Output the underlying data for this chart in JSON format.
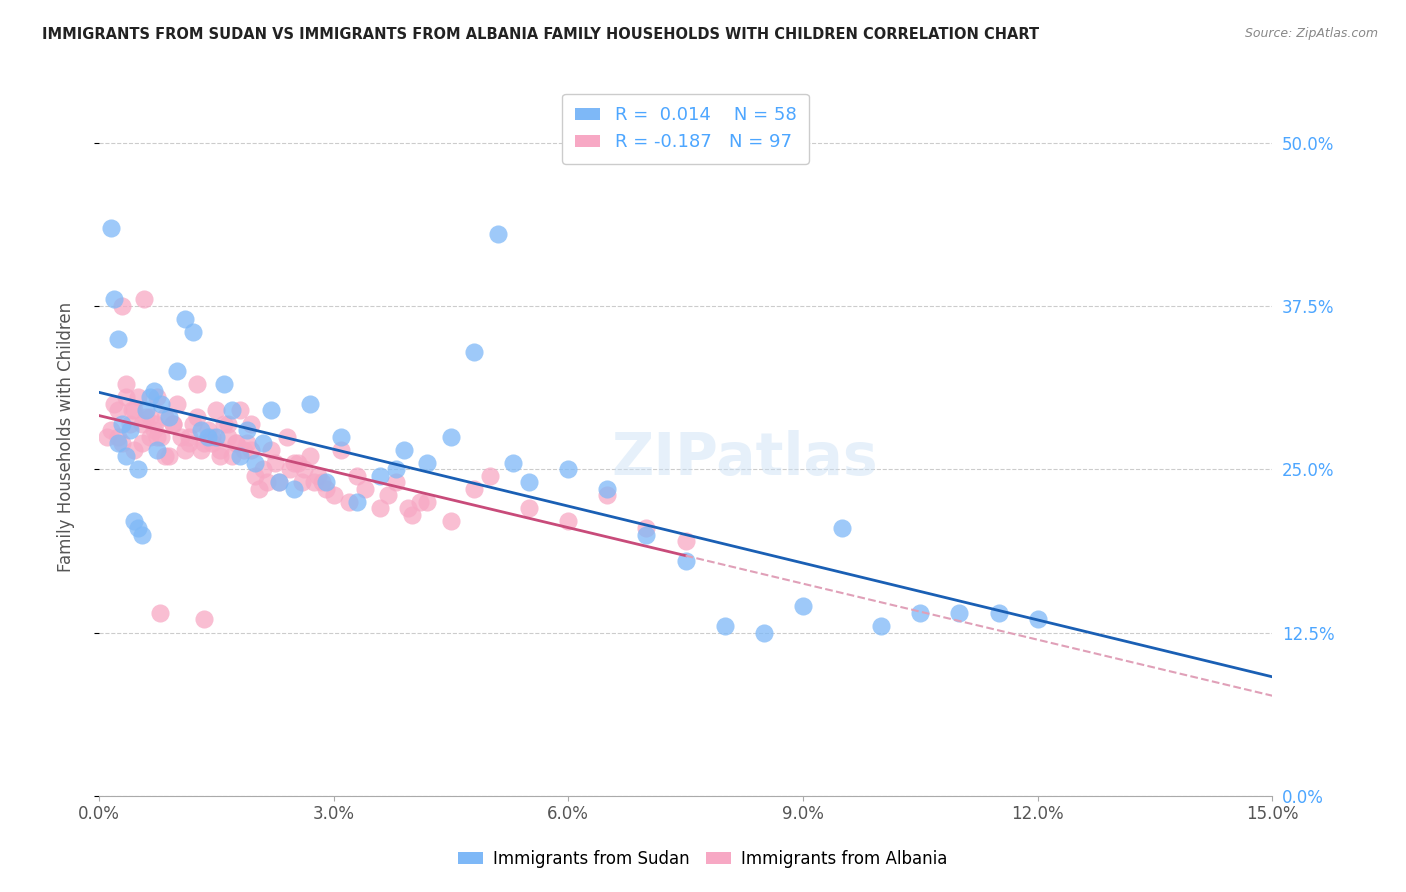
{
  "title": "IMMIGRANTS FROM SUDAN VS IMMIGRANTS FROM ALBANIA FAMILY HOUSEHOLDS WITH CHILDREN CORRELATION CHART",
  "source": "Source: ZipAtlas.com",
  "ylabel": "Family Households with Children",
  "xlabel_ticks": [
    "0.0%",
    "3.0%",
    "6.0%",
    "9.0%",
    "12.0%",
    "15.0%"
  ],
  "xlabel_vals": [
    0.0,
    3.0,
    6.0,
    9.0,
    12.0,
    15.0
  ],
  "ylabel_ticks": [
    "0.0%",
    "12.5%",
    "25.0%",
    "37.5%",
    "50.0%"
  ],
  "ylabel_vals": [
    0.0,
    12.5,
    25.0,
    37.5,
    50.0
  ],
  "xmin": 0.0,
  "xmax": 15.0,
  "ymin": 0.0,
  "ymax": 55.0,
  "sudan_R": "0.014",
  "sudan_N": "58",
  "albania_R": "-0.187",
  "albania_N": "97",
  "sudan_color": "#7eb8f7",
  "albania_color": "#f7a8c4",
  "sudan_line_color": "#1a5fb4",
  "albania_line_color": "#c84b7a",
  "albania_dash_color": "#e0a0b8",
  "watermark": "ZIPatlas",
  "sudan_x": [
    0.15,
    0.2,
    0.25,
    0.3,
    0.35,
    0.4,
    0.45,
    0.5,
    0.55,
    0.6,
    0.65,
    0.7,
    0.8,
    0.9,
    1.0,
    1.1,
    1.2,
    1.3,
    1.4,
    1.5,
    1.6,
    1.7,
    1.8,
    1.9,
    2.0,
    2.1,
    2.2,
    2.3,
    2.5,
    2.7,
    2.9,
    3.1,
    3.3,
    3.6,
    3.9,
    4.2,
    4.5,
    4.8,
    5.1,
    5.5,
    6.0,
    6.5,
    7.0,
    7.5,
    8.0,
    8.5,
    9.0,
    9.5,
    10.0,
    10.5,
    11.0,
    11.5,
    12.0,
    3.8,
    5.3,
    0.25,
    0.5,
    0.75
  ],
  "sudan_y": [
    43.5,
    38.0,
    35.0,
    28.5,
    26.0,
    28.0,
    21.0,
    20.5,
    20.0,
    29.5,
    30.5,
    31.0,
    30.0,
    29.0,
    32.5,
    36.5,
    35.5,
    28.0,
    27.5,
    27.5,
    31.5,
    29.5,
    26.0,
    28.0,
    25.5,
    27.0,
    29.5,
    24.0,
    23.5,
    30.0,
    24.0,
    27.5,
    22.5,
    24.5,
    26.5,
    25.5,
    27.5,
    34.0,
    43.0,
    24.0,
    25.0,
    23.5,
    20.0,
    18.0,
    13.0,
    12.5,
    14.5,
    20.5,
    13.0,
    14.0,
    14.0,
    14.0,
    13.5,
    25.0,
    25.5,
    27.0,
    25.0,
    26.5
  ],
  "albania_x": [
    0.1,
    0.15,
    0.2,
    0.25,
    0.3,
    0.35,
    0.4,
    0.45,
    0.5,
    0.55,
    0.6,
    0.65,
    0.7,
    0.75,
    0.8,
    0.85,
    0.9,
    0.95,
    1.0,
    1.05,
    1.1,
    1.15,
    1.2,
    1.25,
    1.3,
    1.35,
    1.4,
    1.45,
    1.5,
    1.55,
    1.6,
    1.65,
    1.7,
    1.75,
    1.8,
    1.85,
    1.9,
    1.95,
    2.0,
    2.1,
    2.2,
    2.3,
    2.4,
    2.5,
    2.6,
    2.7,
    2.8,
    2.9,
    3.0,
    3.2,
    3.4,
    3.6,
    3.8,
    4.0,
    4.2,
    4.5,
    4.8,
    5.0,
    5.5,
    6.0,
    6.5,
    7.0,
    7.5,
    3.1,
    2.15,
    1.15,
    0.55,
    0.45,
    0.25,
    0.35,
    2.55,
    1.75,
    0.65,
    0.85,
    0.75,
    2.25,
    1.55,
    0.95,
    2.85,
    3.3,
    3.7,
    4.1,
    1.65,
    2.45,
    3.95,
    2.05,
    0.3,
    1.95,
    2.75,
    1.45,
    1.25,
    0.72,
    2.62,
    0.42,
    0.58,
    0.78,
    1.35
  ],
  "albania_y": [
    27.5,
    28.0,
    30.0,
    29.5,
    27.0,
    31.5,
    28.5,
    26.5,
    30.5,
    27.0,
    29.0,
    27.5,
    28.0,
    30.5,
    27.5,
    29.0,
    26.0,
    28.5,
    30.0,
    27.5,
    26.5,
    27.0,
    28.5,
    29.0,
    26.5,
    27.0,
    28.0,
    27.5,
    29.5,
    26.0,
    28.5,
    27.5,
    26.0,
    27.0,
    29.5,
    26.5,
    27.0,
    28.5,
    24.5,
    25.0,
    26.5,
    24.0,
    27.5,
    25.5,
    24.0,
    26.0,
    24.5,
    23.5,
    23.0,
    22.5,
    23.5,
    22.0,
    24.0,
    21.5,
    22.5,
    21.0,
    23.5,
    24.5,
    22.0,
    21.0,
    23.0,
    20.5,
    19.5,
    26.5,
    24.0,
    27.5,
    28.5,
    29.5,
    27.5,
    30.5,
    25.5,
    27.0,
    29.0,
    26.0,
    27.5,
    25.5,
    26.5,
    28.5,
    24.0,
    24.5,
    23.0,
    22.5,
    28.5,
    25.0,
    22.0,
    23.5,
    37.5,
    26.5,
    24.0,
    27.0,
    31.5,
    28.5,
    25.0,
    29.5,
    38.0,
    14.0,
    13.5
  ]
}
